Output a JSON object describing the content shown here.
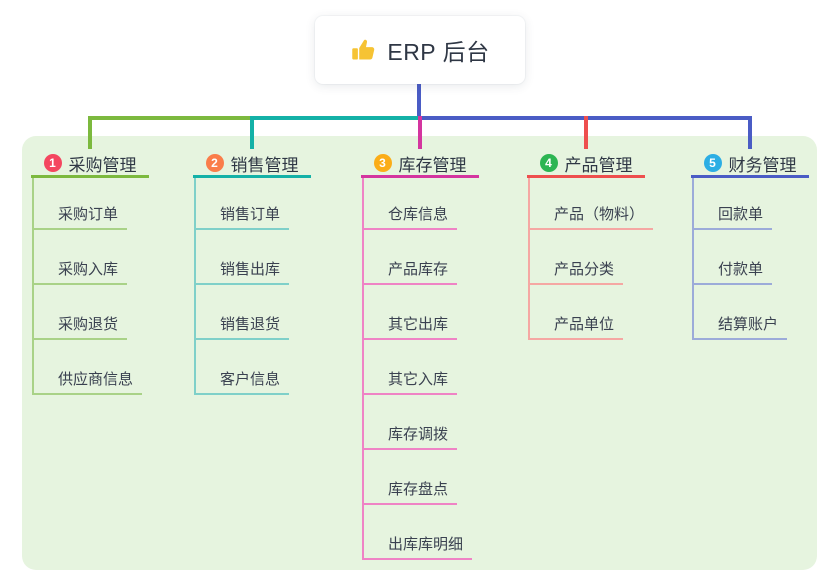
{
  "root": {
    "title": "ERP 后台",
    "icon": "thumbs-up-icon",
    "icon_color": "#f6c334"
  },
  "connector": {
    "stem_color": "#4a5cc5"
  },
  "colors": {
    "panel_bg": "#e6f4df",
    "text_strong": "#2f3745",
    "text_normal": "#3a4150"
  },
  "branches": [
    {
      "badge": "1",
      "label": "采购管理",
      "badge_color": "#f4465f",
      "line_color": "#7cb93e",
      "child_line_color": "#a9d287",
      "children": [
        "采购订单",
        "采购入库",
        "采购退货",
        "供应商信息"
      ]
    },
    {
      "badge": "2",
      "label": "销售管理",
      "badge_color": "#fa7d4a",
      "line_color": "#14b1a7",
      "child_line_color": "#7fd0c9",
      "children": [
        "销售订单",
        "销售出库",
        "销售退货",
        "客户信息"
      ]
    },
    {
      "badge": "3",
      "label": "库存管理",
      "badge_color": "#fbad18",
      "line_color": "#d4359f",
      "child_line_color": "#ef83c5",
      "children": [
        "仓库信息",
        "产品库存",
        "其它出库",
        "其它入库",
        "库存调拨",
        "库存盘点",
        "出库库明细"
      ]
    },
    {
      "badge": "4",
      "label": "产品管理",
      "badge_color": "#2cb552",
      "line_color": "#ee4f4e",
      "child_line_color": "#f5a7a3",
      "children": [
        "产品（物料）",
        "产品分类",
        "产品单位"
      ]
    },
    {
      "badge": "5",
      "label": "财务管理",
      "badge_color": "#2caee4",
      "line_color": "#4a5cc5",
      "child_line_color": "#9cabd9",
      "children": [
        "回款单",
        "付款单",
        "结算账户"
      ]
    }
  ]
}
